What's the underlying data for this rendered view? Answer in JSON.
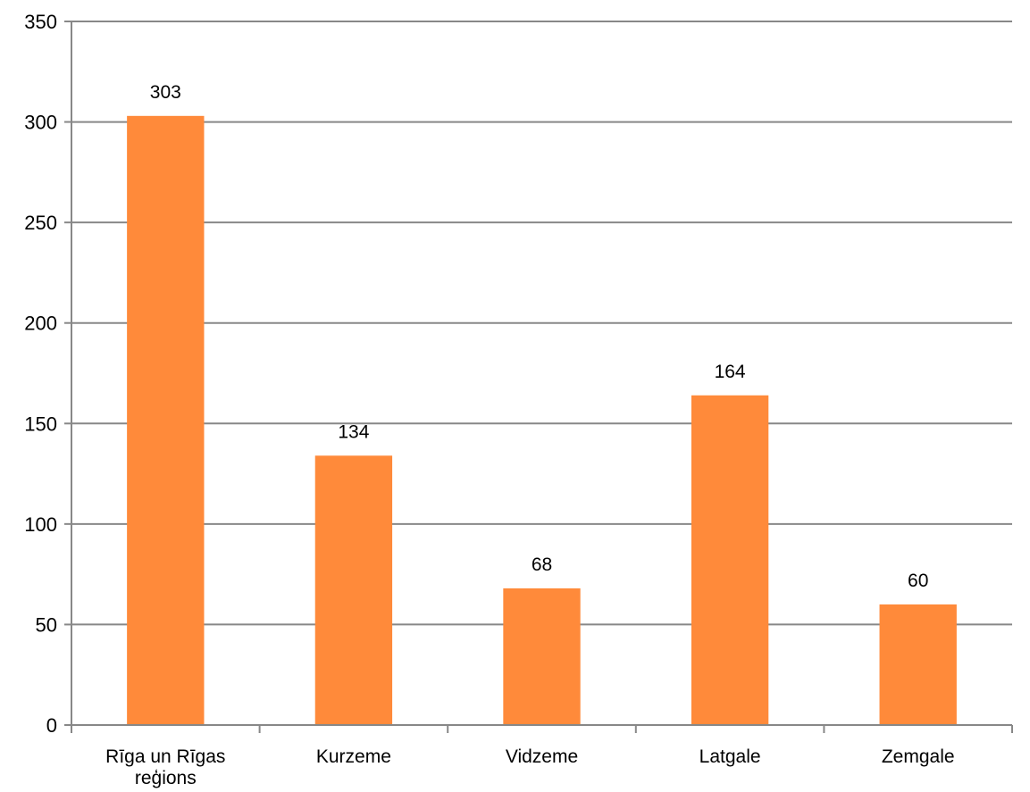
{
  "chart_data": {
    "type": "bar",
    "title": "",
    "xlabel": "",
    "ylabel": "",
    "categories": [
      "Rīga un Rīgas reģions",
      "Kurzeme",
      "Vidzeme",
      "Latgale",
      "Zemgale"
    ],
    "category_label_lines": [
      [
        "Rīga un Rīgas",
        "reģions"
      ],
      [
        "Kurzeme"
      ],
      [
        "Vidzeme"
      ],
      [
        "Latgale"
      ],
      [
        "Zemgale"
      ]
    ],
    "values": [
      303,
      134,
      68,
      164,
      60
    ],
    "data_labels": [
      "303",
      "134",
      "68",
      "164",
      "60"
    ],
    "ylim": [
      0,
      350
    ],
    "yticks": [
      0,
      50,
      100,
      150,
      200,
      250,
      300,
      350
    ],
    "ytick_labels": [
      "0",
      "50",
      "100",
      "150",
      "200",
      "250",
      "300",
      "350"
    ],
    "grid": true,
    "legend": "none",
    "colors": {
      "bar": "#FF8A3A",
      "grid": "#888888",
      "axis": "#888888",
      "text": "#000000"
    }
  }
}
